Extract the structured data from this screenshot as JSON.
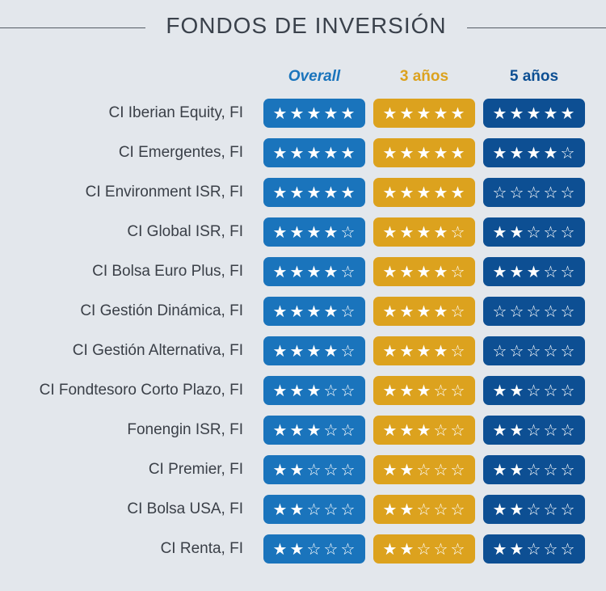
{
  "title": "FONDOS DE INVERSIÓN",
  "colors": {
    "background": "#e3e7ec",
    "overall": "#1a74bc",
    "three_years": "#dca21e",
    "five_years": "#0d4f93"
  },
  "columns": {
    "overall": "Overall",
    "three_years": "3 años",
    "five_years": "5 años"
  },
  "funds": [
    {
      "name": "CI Iberian Equity, FI",
      "overall": 5,
      "three_years": 5,
      "five_years": 5
    },
    {
      "name": "CI Emergentes, FI",
      "overall": 5,
      "three_years": 5,
      "five_years": 4
    },
    {
      "name": "CI Environment ISR, FI",
      "overall": 5,
      "three_years": 5,
      "five_years": 0
    },
    {
      "name": "CI Global ISR, FI",
      "overall": 4,
      "three_years": 4,
      "five_years": 2
    },
    {
      "name": "CI Bolsa Euro Plus, FI",
      "overall": 4,
      "three_years": 4,
      "five_years": 3
    },
    {
      "name": "CI Gestión Dinámica, FI",
      "overall": 4,
      "three_years": 4,
      "five_years": 0
    },
    {
      "name": "CI Gestión Alternativa, FI",
      "overall": 4,
      "three_years": 4,
      "five_years": 0
    },
    {
      "name": "CI Fondtesoro Corto Plazo, FI",
      "overall": 3,
      "three_years": 3,
      "five_years": 2
    },
    {
      "name": "Fonengin ISR, FI",
      "overall": 3,
      "three_years": 3,
      "five_years": 2
    },
    {
      "name": "CI Premier, FI",
      "overall": 2,
      "three_years": 2,
      "five_years": 2
    },
    {
      "name": "CI Bolsa USA, FI",
      "overall": 2,
      "three_years": 2,
      "five_years": 2
    },
    {
      "name": "CI Renta, FI",
      "overall": 2,
      "three_years": 2,
      "five_years": 2
    }
  ]
}
